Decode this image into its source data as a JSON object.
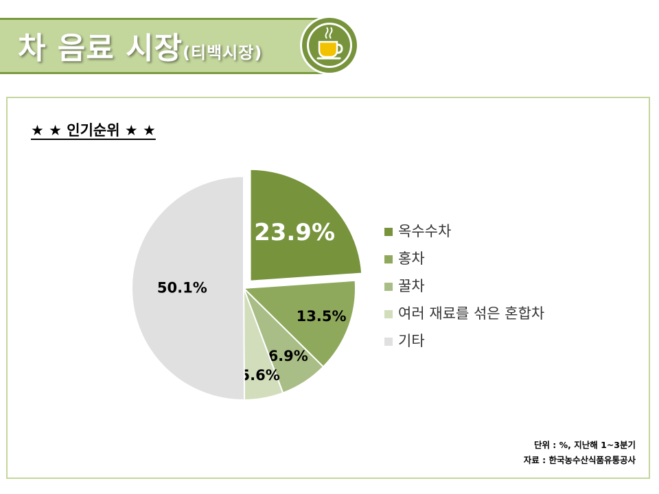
{
  "header": {
    "title": "차 음료 시장",
    "subtitle": "(티백시장)",
    "badge_icon": "tea-cup-icon"
  },
  "section_heading": "★ ★ 인기순위 ★ ★",
  "chart_data": {
    "type": "pie",
    "exploded": "옥수수차",
    "slices": [
      {
        "label": "옥수수차",
        "value": 23.9,
        "value_label": "23.9%",
        "color": "#77933c"
      },
      {
        "label": "홍차",
        "value": 13.5,
        "value_label": "13.5%",
        "color": "#8fa95c"
      },
      {
        "label": "꿀차",
        "value": 6.9,
        "value_label": "6.9%",
        "color": "#a9bd86"
      },
      {
        "label": "여러 재료를 섞은 혼합차",
        "value": 5.6,
        "value_label": "5.6%",
        "color": "#d1ddbb"
      },
      {
        "label": "기타",
        "value": 50.1,
        "value_label": "50.1%",
        "color": "#e0e0e0"
      }
    ],
    "legend_position": "right"
  },
  "footnote": {
    "unit": "단위 : %, 지난해 1~3분기",
    "source": "자료 : 한국농수산식품유통공사"
  }
}
